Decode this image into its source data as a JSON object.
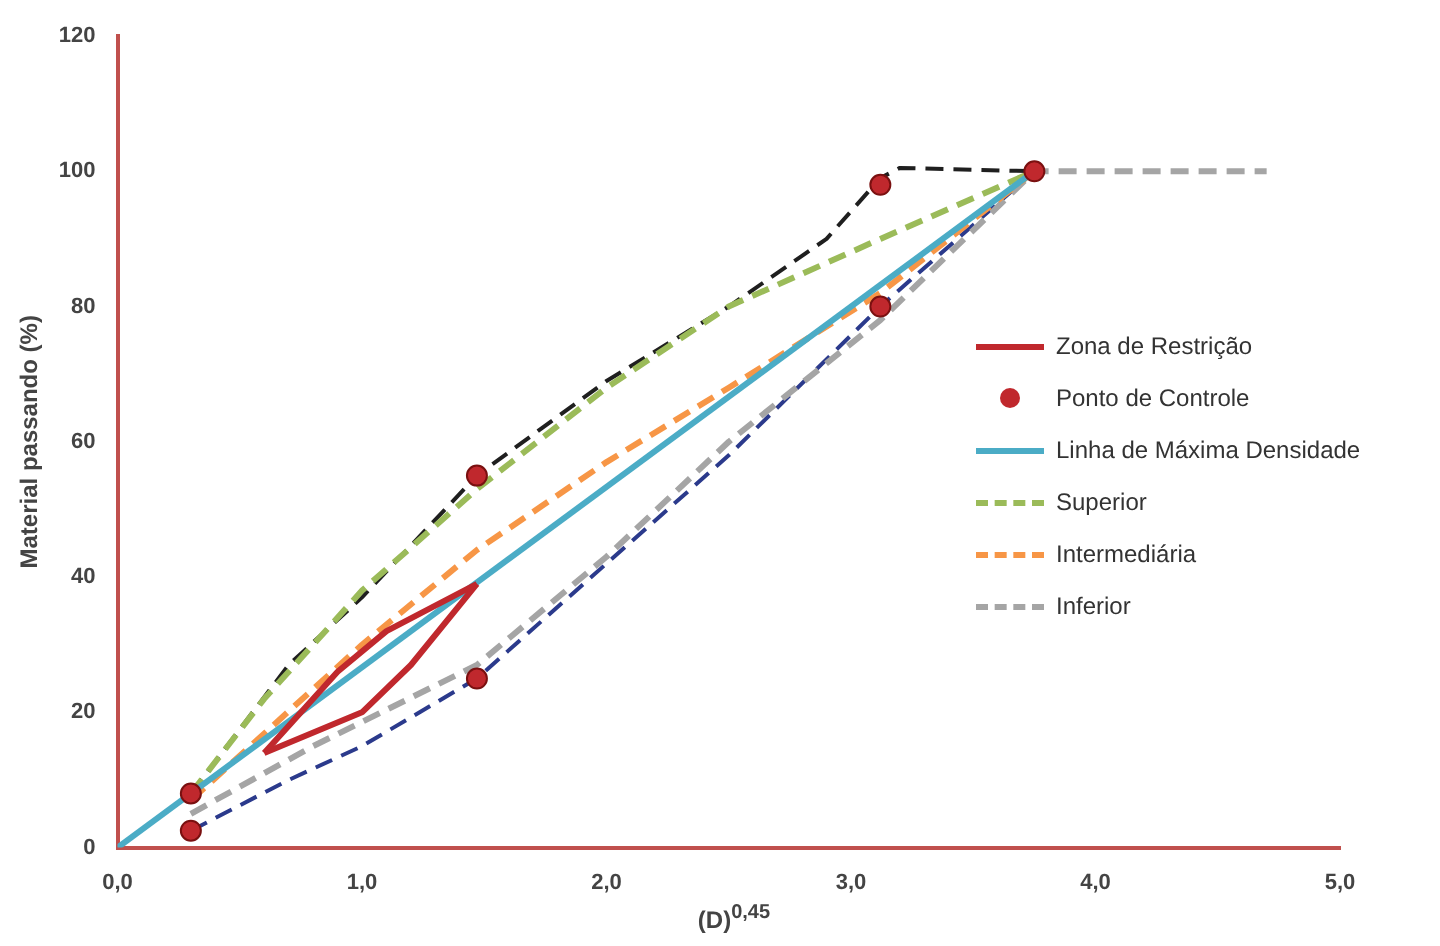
{
  "chart_data": {
    "type": "line",
    "xlabel": "(D)$^{0,45}$",
    "ylabel": "Material passando (%)",
    "xlim": [
      0,
      5
    ],
    "xticks": [
      {
        "value": 0,
        "label": "0,0"
      },
      {
        "value": 1,
        "label": "1,0"
      },
      {
        "value": 2,
        "label": "2,0"
      },
      {
        "value": 3,
        "label": "3,0"
      },
      {
        "value": 4,
        "label": "4,0"
      },
      {
        "value": 5,
        "label": "5,0"
      }
    ],
    "ylim": [
      0,
      120
    ],
    "yticks": [
      0,
      20,
      40,
      60,
      80,
      100,
      120
    ],
    "grid": false,
    "legend": "right",
    "marker": "none",
    "series": [
      {
        "name": "Zona de Restrição",
        "color": "#c0282d",
        "line_style": "solid",
        "x": [
          0.6,
          0.9,
          1.1,
          1.47
        ],
        "values": [
          14,
          26,
          32,
          39
        ]
      },
      {
        "color": "#c0282d",
        "line_style": "solid",
        "x": [
          0.6,
          1.0,
          1.2,
          1.47
        ],
        "values": [
          14,
          20,
          27,
          39
        ]
      },
      {
        "type": "scatter",
        "name": "Ponto de Controle",
        "color": "#c0282d",
        "marker": "circle",
        "x": [
          0.3,
          0.3,
          1.47,
          1.47,
          3.12,
          3.12,
          3.75
        ],
        "values": [
          8,
          2.5,
          55,
          25,
          98,
          80,
          100
        ]
      },
      {
        "name": "Linha de Máxima Densidade",
        "color": "#4bacc6",
        "line_style": "solid",
        "x": [
          0,
          3.75
        ],
        "values": [
          0,
          100
        ]
      },
      {
        "name": "Superior",
        "color": "#9bbb59",
        "line_style": "dashed",
        "x": [
          0.3,
          0.6,
          1.0,
          1.47,
          2.0,
          2.5,
          3.12,
          3.75
        ],
        "values": [
          8,
          22,
          38,
          53,
          68,
          80,
          90,
          100
        ]
      },
      {
        "name": "Intermediária",
        "color": "#f79646",
        "line_style": "dashed",
        "x": [
          0.3,
          1.0,
          1.47,
          2.0,
          2.5,
          3.12,
          3.75
        ],
        "values": [
          7,
          30,
          44,
          57,
          68,
          82,
          100
        ]
      },
      {
        "name": "Inferior",
        "color": "#a5a5a5",
        "line_style": "dashed",
        "x": [
          0.3,
          0.8,
          1.47,
          2.0,
          2.5,
          3.12,
          3.75,
          4.7
        ],
        "values": [
          5,
          15,
          27,
          43,
          60,
          78,
          100,
          100
        ]
      },
      {
        "color": "#1f1f1f",
        "line_style": "dashed",
        "x": [
          0.3,
          0.7,
          1.0,
          1.47,
          2.0,
          2.5,
          2.9,
          3.12,
          3.2,
          3.75
        ],
        "values": [
          8,
          27,
          37,
          55,
          69,
          80,
          90,
          99,
          100.5,
          100
        ]
      },
      {
        "color": "#2b3a8c",
        "line_style": "dashed",
        "x": [
          0.3,
          0.7,
          1.0,
          1.47,
          2.0,
          2.5,
          3.12,
          3.75
        ],
        "values": [
          2.5,
          10,
          15,
          25,
          42,
          58,
          80,
          100
        ]
      }
    ]
  }
}
